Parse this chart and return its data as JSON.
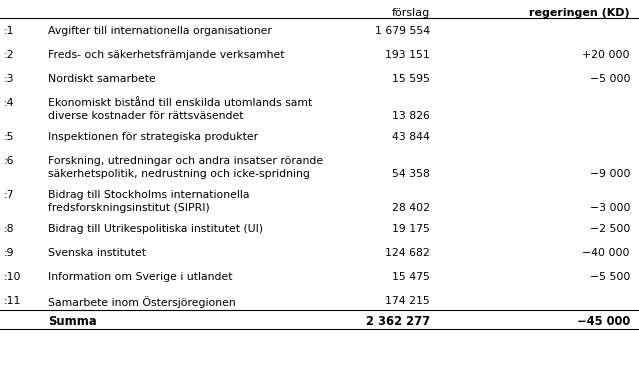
{
  "col_header1_forslag": "förslag",
  "col_header1_kd": "regeringen (KD)",
  "rows": [
    {
      ":": ":1",
      "label": "Avgifter till internationella organisationer",
      "label2": "",
      "forslag": "1 679 554",
      "kd": ""
    },
    {
      ":": ":2",
      "label": "Freds- och säkerhetsfrämjande verksamhet",
      "label2": "",
      "forslag": "193 151",
      "kd": "+20 000"
    },
    {
      ":": ":3",
      "label": "Nordiskt samarbete",
      "label2": "",
      "forslag": "15 595",
      "kd": "−5 000"
    },
    {
      ":": ":4",
      "label": "Ekonomiskt bistånd till enskilda utomlands samt",
      "label2": "diverse kostnader för rättsväsendet",
      "forslag": "13 826",
      "kd": ""
    },
    {
      ":": ":5",
      "label": "Inspektionen för strategiska produkter",
      "label2": "",
      "forslag": "43 844",
      "kd": ""
    },
    {
      ":": ":6",
      "label": "Forskning, utredningar och andra insatser rörande",
      "label2": "säkerhetspolitik, nedrustning och icke-spridning",
      "forslag": "54 358",
      "kd": "−9 000"
    },
    {
      ":": ":7",
      "label": "Bidrag till Stockholms internationella",
      "label2": "fredsforskningsinstitut (SIPRI)",
      "forslag": "28 402",
      "kd": "−3 000"
    },
    {
      ":": ":8",
      "label": "Bidrag till Utrikespolitiska institutet (UI)",
      "label2": "",
      "forslag": "19 175",
      "kd": "−2 500"
    },
    {
      ":": ":9",
      "label": "Svenska institutet",
      "label2": "",
      "forslag": "124 682",
      "kd": "−40 000"
    },
    {
      ":": ":10",
      "label": "Information om Sverige i utlandet",
      "label2": "",
      "forslag": "15 475",
      "kd": "−5 500"
    },
    {
      ":": ":11",
      "label": "Samarbete inom Östersjöregionen",
      "label2": "",
      "forslag": "174 215",
      "kd": ""
    }
  ],
  "summa_label": "Summa",
  "summa_forslag": "2 362 277",
  "summa_kd": "−45 000",
  "bg_color": "#ffffff",
  "text_color": "#000000",
  "font_size": 7.8,
  "header_font_size": 8.0
}
